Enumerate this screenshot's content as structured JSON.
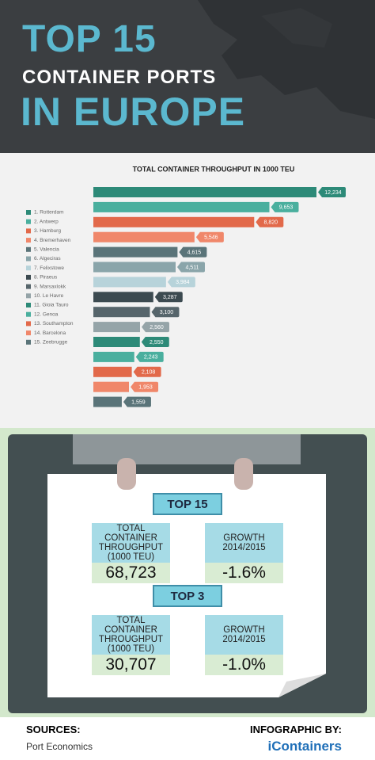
{
  "header": {
    "line1": "TOP 15",
    "line2": "CONTAINER PORTS",
    "line3": "IN EUROPE"
  },
  "chart_data": {
    "type": "bar",
    "orientation": "horizontal",
    "title": "TOTAL CONTAINER THROUGHPUT IN 1000 TEU",
    "categories": [
      "1. Rotterdam",
      "2. Antwerp",
      "3. Hamburg",
      "4. Bremerhaven",
      "5. Valencia",
      "6. Algeciras",
      "7. Felixstowe",
      "8. Piraeus",
      "9. Marsaxlokk",
      "10. Le Havre",
      "11. Gioia Tauro",
      "12. Genoa",
      "13. Southampton",
      "14. Barcelona",
      "15. Zeebrugge"
    ],
    "values": [
      12234,
      9653,
      8820,
      5546,
      4615,
      4511,
      3984,
      3287,
      3100,
      2560,
      2550,
      2243,
      2108,
      1953,
      1559
    ],
    "value_labels": [
      "12,234",
      "9,653",
      "8,820",
      "5,546",
      "4,615",
      "4,511",
      "3,984",
      "3,287",
      "3,100",
      "2,560",
      "2,550",
      "2,243",
      "2,108",
      "1,953",
      "1,559"
    ],
    "colors": [
      "#2d8a78",
      "#4aaf9e",
      "#e2694a",
      "#f0876a",
      "#5a7479",
      "#8aa5aa",
      "#b7d3da",
      "#3c4a50",
      "#56656b",
      "#95a4a8",
      "#2d8a78",
      "#4aaf9e",
      "#e2694a",
      "#f0876a",
      "#5a7479"
    ],
    "legend": "left"
  },
  "clipboard": {
    "groups": [
      {
        "title": "TOP 15",
        "stats": [
          {
            "label": "TOTAL CONTAINER THROUGHPUT (1000 TEU)",
            "value": "68,723"
          },
          {
            "label": "GROWTH 2014/2015",
            "value": "-1.6%"
          }
        ]
      },
      {
        "title": "TOP 3",
        "stats": [
          {
            "label": "TOTAL CONTAINER THROUGHPUT (1000 TEU)",
            "value": "30,707"
          },
          {
            "label": "GROWTH 2014/2015",
            "value": "-1.0%"
          }
        ]
      }
    ]
  },
  "footer": {
    "sources_title": "SOURCES:",
    "source": "Port Economics",
    "credit_title": "INFOGRAPHIC BY:",
    "brand": "iContainers"
  }
}
